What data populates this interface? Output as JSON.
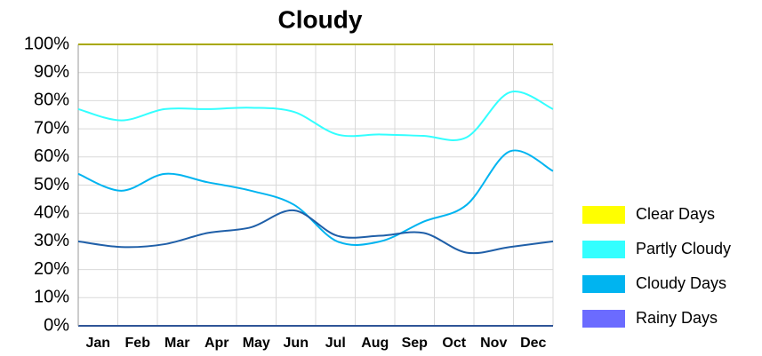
{
  "chart_data": {
    "type": "line",
    "title": "Cloudy",
    "categories": [
      "Jan",
      "Feb",
      "Mar",
      "Apr",
      "May",
      "Jun",
      "Jul",
      "Aug",
      "Sep",
      "Oct",
      "Nov",
      "Dec"
    ],
    "series": [
      {
        "name": "Clear Days",
        "color": "#ffff00",
        "line_color": "#a8a800",
        "values": [
          100,
          100,
          100,
          100,
          100,
          100,
          100,
          100,
          100,
          100,
          100,
          100
        ]
      },
      {
        "name": "Partly Cloudy",
        "color": "#33ffff",
        "line_color": "#33ffff",
        "values": [
          77,
          73,
          77,
          77,
          77.5,
          76,
          68,
          68,
          67.5,
          67,
          83,
          77
        ]
      },
      {
        "name": "Cloudy Days",
        "color": "#00b4f0",
        "line_color": "#00b4f0",
        "values": [
          54,
          48,
          54,
          51,
          48,
          43,
          30,
          30,
          37,
          43,
          62,
          55
        ]
      },
      {
        "name": "Rainy Days",
        "color": "#6b6bff",
        "line_color": "#1f5fa8",
        "values": [
          30,
          28,
          29,
          33,
          35,
          41,
          32,
          32,
          33,
          26,
          28,
          30
        ]
      }
    ],
    "ylim": [
      0,
      100
    ],
    "yticks": [
      {
        "value": 0,
        "label": "0%"
      },
      {
        "value": 10,
        "label": "10%"
      },
      {
        "value": 20,
        "label": "20%"
      },
      {
        "value": 30,
        "label": "30%"
      },
      {
        "value": 40,
        "label": "40%"
      },
      {
        "value": 50,
        "label": "50%"
      },
      {
        "value": 60,
        "label": "60%"
      },
      {
        "value": 70,
        "label": "70%"
      },
      {
        "value": 80,
        "label": "80%"
      },
      {
        "value": 90,
        "label": "90%"
      },
      {
        "value": 100,
        "label": "100%"
      }
    ],
    "grid": true,
    "legend": "right"
  }
}
